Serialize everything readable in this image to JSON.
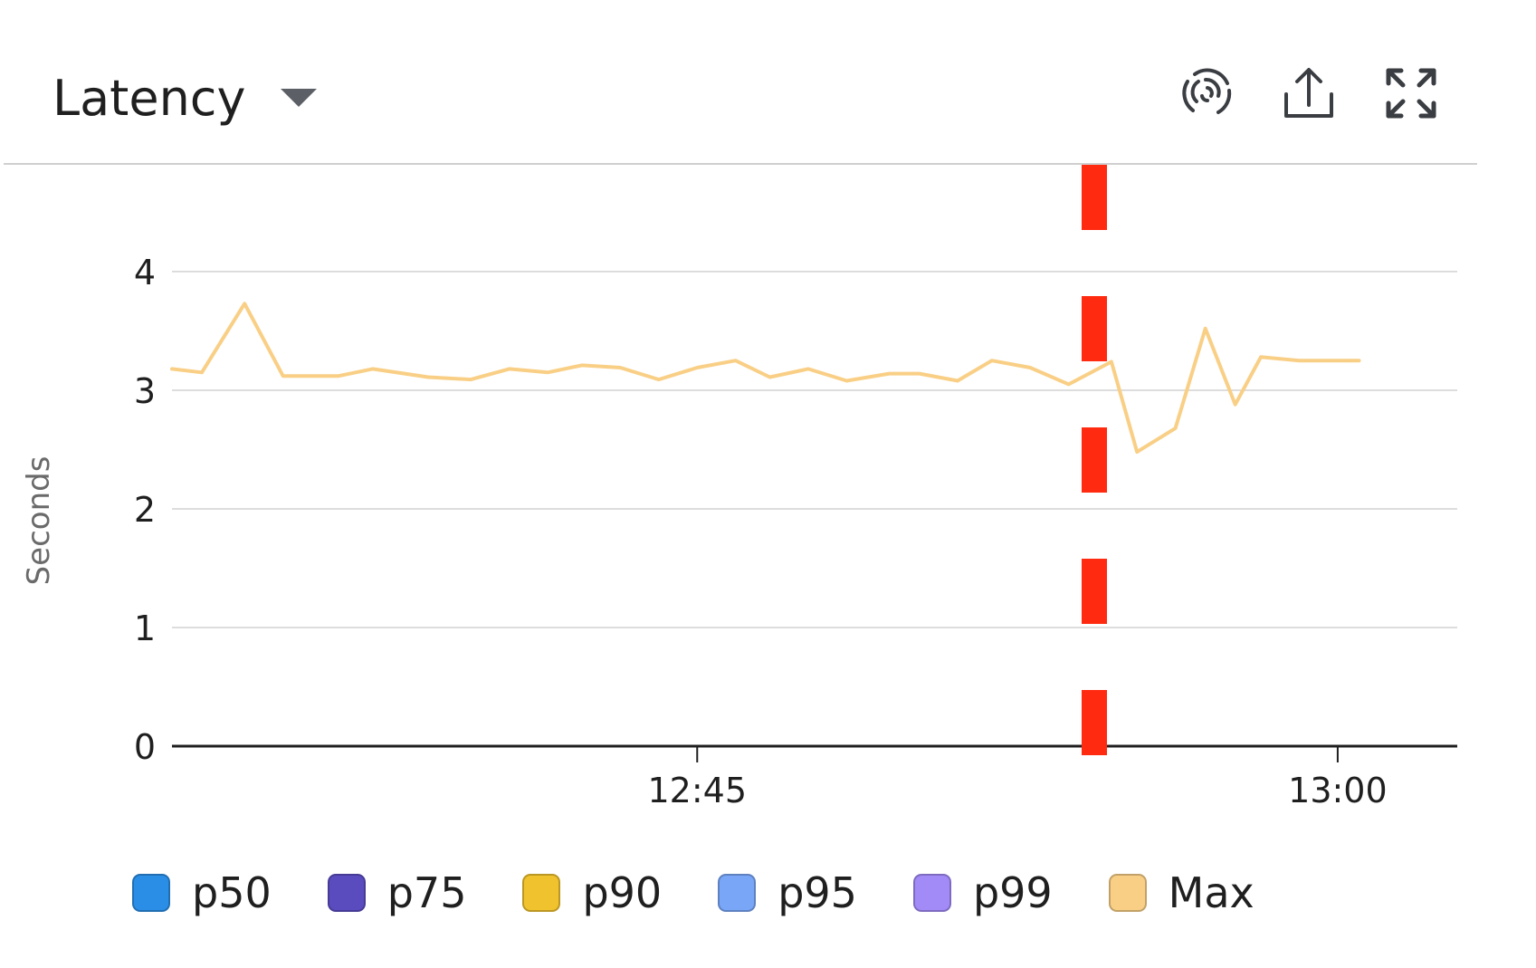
{
  "header": {
    "title": "Latency",
    "icons": [
      "fingerprint-icon",
      "share-export-icon",
      "fullscreen-expand-icon"
    ]
  },
  "colors": {
    "max_line": "#f9cf86",
    "marker": "#ff2a10",
    "grid": "#d2d2d2",
    "axis": "#1f1f1f"
  },
  "chart_data": {
    "type": "line",
    "ylabel": "Seconds",
    "xlabel": "",
    "ylim": [
      0,
      4.9
    ],
    "y_ticks": [
      0,
      1,
      2,
      3,
      4
    ],
    "x_ticks": [
      {
        "label": "12:45",
        "minutes": 45
      },
      {
        "label": "13:00",
        "minutes": 60
      }
    ],
    "x_range_minutes": [
      32.7,
      62.8
    ],
    "event_marker_minutes": 54.3,
    "grid": true,
    "legend_position": "bottom",
    "legend": [
      {
        "name": "p50",
        "color": "#2b8ee6"
      },
      {
        "name": "p75",
        "color": "#5a4cbf"
      },
      {
        "name": "p90",
        "color": "#f0c22e"
      },
      {
        "name": "p95",
        "color": "#79a6f7"
      },
      {
        "name": "p99",
        "color": "#a28af7"
      },
      {
        "name": "Max",
        "color": "#f9cf86"
      }
    ],
    "series": [
      {
        "name": "Max",
        "x_minutes": [
          32.7,
          33.4,
          34.4,
          35.3,
          36.6,
          37.4,
          38.7,
          39.7,
          40.6,
          41.5,
          42.3,
          43.2,
          44.1,
          45.0,
          45.9,
          46.7,
          47.6,
          48.5,
          49.5,
          50.2,
          51.1,
          51.9,
          52.8,
          53.7,
          54.7,
          55.3,
          56.2,
          56.9,
          57.6,
          58.2,
          59.1,
          59.9,
          60.5
        ],
        "values": [
          3.18,
          3.15,
          3.73,
          3.12,
          3.12,
          3.18,
          3.11,
          3.09,
          3.18,
          3.15,
          3.21,
          3.19,
          3.09,
          3.19,
          3.25,
          3.11,
          3.18,
          3.08,
          3.14,
          3.14,
          3.08,
          3.25,
          3.19,
          3.05,
          3.24,
          2.48,
          2.68,
          3.52,
          2.88,
          3.28,
          3.25,
          3.25,
          3.25
        ]
      }
    ]
  }
}
